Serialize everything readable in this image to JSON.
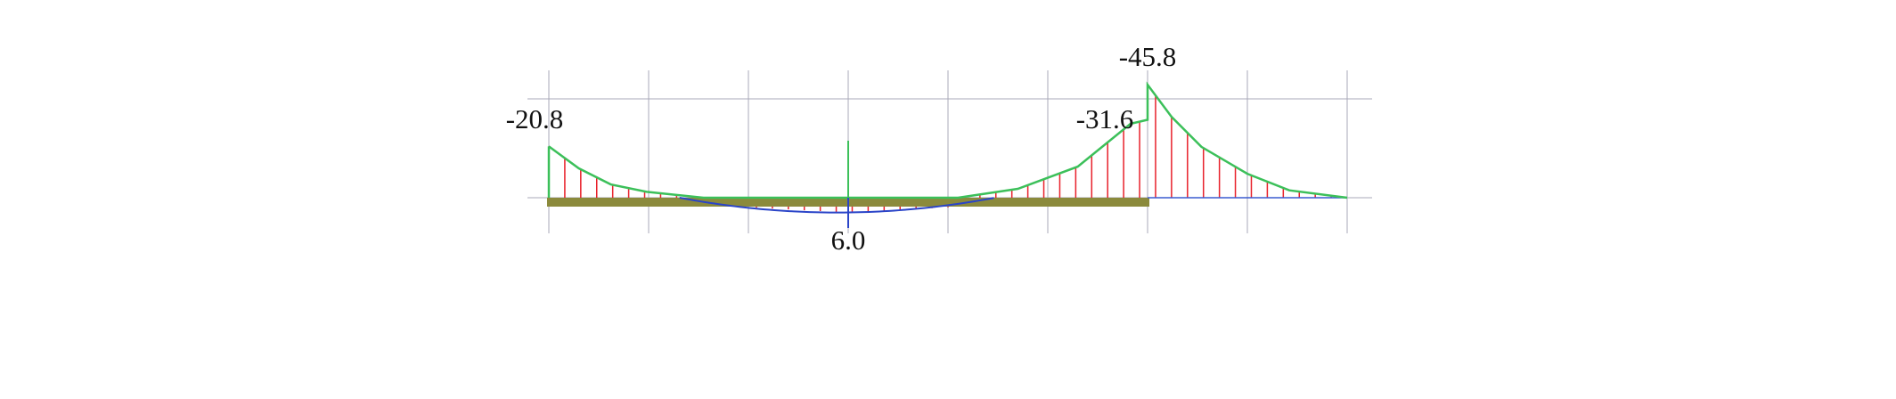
{
  "chart_data": {
    "type": "line",
    "title": "",
    "xlabel": "",
    "ylabel": "",
    "grid": true,
    "supports_at_station": [
      0,
      6,
      8
    ],
    "grid_stations": [
      0,
      1,
      2,
      3,
      4,
      5,
      6,
      7,
      8
    ],
    "series": [
      {
        "role": "negative-envelope",
        "color": "#3cc05a",
        "points": [
          [
            0,
            -20.8
          ],
          [
            0.3,
            -11.9
          ],
          [
            0.62,
            -5.4
          ],
          [
            0.98,
            -2.4
          ],
          [
            1.55,
            0
          ],
          [
            4.1,
            0
          ],
          [
            4.7,
            -3.6
          ],
          [
            5.3,
            -12.6
          ],
          [
            5.83,
            -30.0
          ],
          [
            6,
            -31.6
          ],
          [
            6,
            -45.8
          ],
          [
            6.24,
            -32.8
          ],
          [
            6.54,
            -20.6
          ],
          [
            7.0,
            -9.7
          ],
          [
            7.42,
            -3.0
          ],
          [
            8,
            0
          ]
        ]
      },
      {
        "role": "positive-envelope",
        "color": "#2a44c8",
        "points": [
          [
            1.31,
            0
          ],
          [
            2.0,
            3.9
          ],
          [
            3.0,
            6.0
          ],
          [
            4.0,
            3.9
          ],
          [
            4.47,
            0
          ]
        ]
      }
    ],
    "annotations": [
      {
        "text": "-20.8",
        "station": 0,
        "value": -20.8
      },
      {
        "text": "-31.6",
        "station": 6,
        "value": -31.6
      },
      {
        "text": "-45.8",
        "station": 6,
        "value": -45.8
      },
      {
        "text": "6.0",
        "station": 3,
        "value": 6.0
      }
    ],
    "colors": {
      "hatch": "#e8202a",
      "member": "#8b8a3c",
      "grid": "#a9a9b8",
      "axis": "#3a5bd0"
    }
  }
}
